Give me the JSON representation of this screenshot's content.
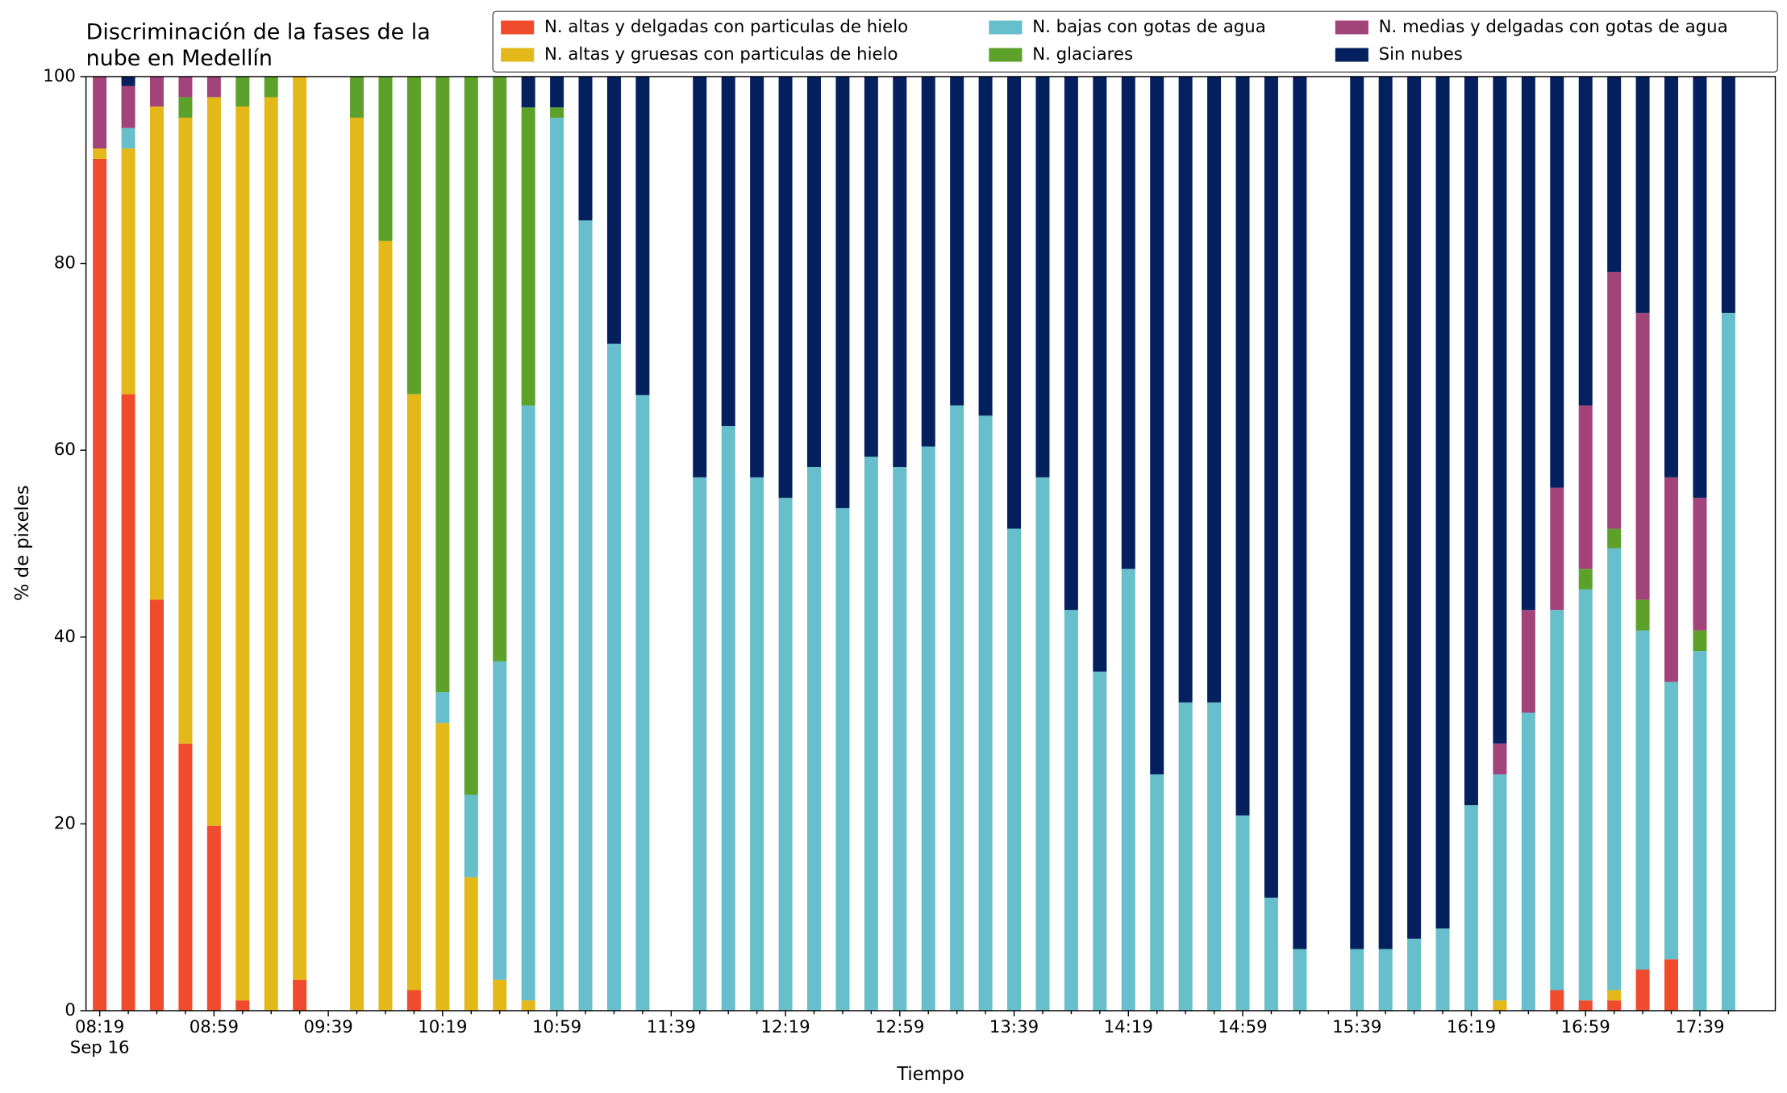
{
  "chart_data": {
    "type": "stacked_bar",
    "title": [
      "Discriminación de la fases de la",
      "nube en Medellín"
    ],
    "xlabel": "Tiempo",
    "ylabel": "% de pixeles",
    "date_label": "Sep 16",
    "categories": [
      "08:19",
      null,
      null,
      null,
      "08:59",
      null,
      null,
      null,
      "09:39",
      null,
      null,
      null,
      "10:19",
      null,
      null,
      null,
      "10:59",
      null,
      null,
      null,
      "11:39",
      null,
      null,
      null,
      "12:19",
      null,
      null,
      null,
      "12:59",
      null,
      null,
      null,
      "13:39",
      null,
      null,
      null,
      "14:19",
      null,
      null,
      null,
      "14:59",
      null,
      null,
      null,
      "15:39",
      null,
      null,
      null,
      "16:19",
      null,
      null,
      null,
      "16:59",
      null,
      null,
      null,
      "17:39",
      null
    ],
    "ylim": [
      0,
      100
    ],
    "yticks": [
      0,
      20,
      40,
      60,
      80,
      100
    ],
    "legend": "upper right",
    "series": [
      {
        "name": "N. altas y delgadas con particulas de hielo",
        "color": "#f04b2c",
        "values": [
          91.2,
          66,
          44,
          28.6,
          19.8,
          1.1,
          0,
          3.3,
          null,
          0,
          0,
          2.2,
          0,
          0,
          0,
          0,
          0,
          0,
          0,
          0,
          null,
          0,
          0,
          0,
          0,
          0,
          0,
          0,
          0,
          0,
          0,
          0,
          0,
          0,
          0,
          0,
          0,
          0,
          0,
          0,
          0,
          0,
          0,
          null,
          0,
          0,
          0,
          0,
          0,
          0,
          0,
          2.2,
          1.1,
          1.1,
          4.4,
          5.5,
          0,
          0
        ]
      },
      {
        "name": "N. altas y gruesas con particulas de hielo",
        "color": "#e3b818",
        "values": [
          1.1,
          26.3,
          52.8,
          67,
          78,
          95.7,
          97.8,
          96.7,
          null,
          95.6,
          82.4,
          63.8,
          30.8,
          14.3,
          3.3,
          1.1,
          0,
          0,
          0,
          0,
          null,
          0,
          0,
          0,
          0,
          0,
          0,
          0,
          0,
          0,
          0,
          0,
          0,
          0,
          0,
          0,
          0,
          0,
          0,
          0,
          0,
          0,
          0,
          null,
          0,
          0,
          0,
          0,
          0,
          1.1,
          0,
          0,
          0,
          1.1,
          0,
          0,
          0,
          0
        ]
      },
      {
        "name": "N. bajas con gotas de agua",
        "color": "#66bfcb",
        "values": [
          0,
          2.2,
          0,
          0,
          0,
          0,
          0,
          0,
          null,
          0,
          0,
          0,
          3.3,
          8.8,
          34.1,
          63.7,
          95.6,
          84.6,
          71.4,
          65.9,
          null,
          57.1,
          62.6,
          57.1,
          54.9,
          58.2,
          53.8,
          59.3,
          58.2,
          60.4,
          64.8,
          63.7,
          51.6,
          57.1,
          42.9,
          36.3,
          47.3,
          25.3,
          33,
          33,
          20.9,
          12.1,
          6.6,
          null,
          6.6,
          6.6,
          7.7,
          8.8,
          22,
          24.2,
          31.9,
          40.7,
          44,
          47.3,
          36.3,
          29.7,
          38.5,
          74.7
        ]
      },
      {
        "name": "N. glaciares",
        "color": "#5ba12a",
        "values": [
          0,
          0,
          0,
          2.2,
          0,
          3.2,
          2.2,
          0,
          null,
          4.4,
          17.6,
          34,
          65.9,
          76.9,
          62.6,
          31.9,
          1.1,
          0,
          0,
          0,
          null,
          0,
          0,
          0,
          0,
          0,
          0,
          0,
          0,
          0,
          0,
          0,
          0,
          0,
          0,
          0,
          0,
          0,
          0,
          0,
          0,
          0,
          0,
          null,
          0,
          0,
          0,
          0,
          0,
          0,
          0,
          0,
          2.2,
          2.1,
          3.3,
          0,
          2.2,
          0
        ]
      },
      {
        "name": "N. medias y delgadas con gotas de agua",
        "color": "#a2437a",
        "values": [
          7.7,
          4.5,
          3.2,
          2.2,
          2.2,
          0,
          0,
          0,
          null,
          0,
          0,
          0,
          0,
          0,
          0,
          0,
          0,
          0,
          0,
          0,
          null,
          0,
          0,
          0,
          0,
          0,
          0,
          0,
          0,
          0,
          0,
          0,
          0,
          0,
          0,
          0,
          0,
          0,
          0,
          0,
          0,
          0,
          0,
          null,
          0,
          0,
          0,
          0,
          0,
          3.3,
          11,
          13.1,
          17.5,
          27.5,
          30.7,
          21.9,
          14.2,
          0
        ]
      },
      {
        "name": "Sin nubes",
        "color": "#04205f",
        "values": [
          0,
          1,
          0,
          0,
          0,
          0,
          0,
          0,
          null,
          0,
          0,
          0,
          0,
          0,
          0,
          3.3,
          3.3,
          15.4,
          28.6,
          34.1,
          null,
          42.9,
          37.4,
          42.9,
          45.1,
          41.8,
          46.2,
          40.7,
          41.8,
          39.6,
          35.2,
          36.3,
          48.4,
          42.9,
          57.1,
          63.7,
          52.7,
          74.7,
          67,
          67,
          79.1,
          87.9,
          93.4,
          null,
          93.4,
          93.4,
          92.3,
          91.2,
          78,
          71.4,
          57.1,
          44,
          35.2,
          20.9,
          25.3,
          42.9,
          45.1,
          25.3
        ]
      }
    ]
  }
}
